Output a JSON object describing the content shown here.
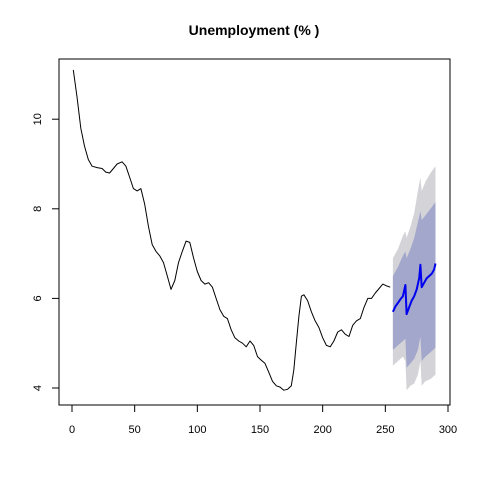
{
  "chart_data": {
    "type": "line",
    "title": "Unemployment (% )",
    "xlabel": "",
    "ylabel": "",
    "xlim": [
      0,
      300
    ],
    "ylim": [
      3.8,
      11.4
    ],
    "x_ticks": [
      0,
      50,
      100,
      150,
      200,
      250,
      300
    ],
    "x_tick_labels": [
      "0",
      "50",
      "100",
      "150",
      "200",
      "250",
      "300"
    ],
    "y_ticks": [
      4,
      6,
      8,
      10
    ],
    "y_tick_labels": [
      "4",
      "6",
      "8",
      "10"
    ],
    "grid": false,
    "legend": "none",
    "colors": {
      "history": "#000000",
      "forecast": "#0000ee",
      "band_80": "#a3a7cc",
      "band_95": "#d4d4d8"
    },
    "series": [
      {
        "role": "history",
        "points": [
          [
            1,
            11.1
          ],
          [
            4,
            10.5
          ],
          [
            7,
            9.8
          ],
          [
            10,
            9.4
          ],
          [
            13,
            9.1
          ],
          [
            16,
            8.95
          ],
          [
            20,
            8.92
          ],
          [
            24,
            8.9
          ],
          [
            27,
            8.82
          ],
          [
            30,
            8.8
          ],
          [
            33,
            8.9
          ],
          [
            36,
            9.0
          ],
          [
            40,
            9.05
          ],
          [
            43,
            8.95
          ],
          [
            46,
            8.7
          ],
          [
            49,
            8.45
          ],
          [
            52,
            8.4
          ],
          [
            55,
            8.45
          ],
          [
            58,
            8.1
          ],
          [
            61,
            7.6
          ],
          [
            64,
            7.2
          ],
          [
            67,
            7.05
          ],
          [
            70,
            6.95
          ],
          [
            73,
            6.8
          ],
          [
            76,
            6.5
          ],
          [
            79,
            6.2
          ],
          [
            82,
            6.4
          ],
          [
            85,
            6.8
          ],
          [
            88,
            7.05
          ],
          [
            91,
            7.28
          ],
          [
            94,
            7.25
          ],
          [
            97,
            6.9
          ],
          [
            100,
            6.6
          ],
          [
            103,
            6.4
          ],
          [
            106,
            6.32
          ],
          [
            109,
            6.35
          ],
          [
            112,
            6.25
          ],
          [
            115,
            6.0
          ],
          [
            118,
            5.75
          ],
          [
            121,
            5.6
          ],
          [
            124,
            5.55
          ],
          [
            127,
            5.3
          ],
          [
            130,
            5.12
          ],
          [
            133,
            5.05
          ],
          [
            136,
            5.0
          ],
          [
            139,
            4.92
          ],
          [
            142,
            5.05
          ],
          [
            145,
            4.95
          ],
          [
            148,
            4.7
          ],
          [
            151,
            4.62
          ],
          [
            154,
            4.55
          ],
          [
            157,
            4.35
          ],
          [
            160,
            4.15
          ],
          [
            163,
            4.05
          ],
          [
            166,
            4.02
          ],
          [
            169,
            3.95
          ],
          [
            172,
            3.97
          ],
          [
            175,
            4.05
          ],
          [
            177,
            4.4
          ],
          [
            179,
            5.0
          ],
          [
            181,
            5.6
          ],
          [
            183,
            6.05
          ],
          [
            185,
            6.08
          ],
          [
            188,
            5.95
          ],
          [
            191,
            5.7
          ],
          [
            194,
            5.5
          ],
          [
            197,
            5.35
          ],
          [
            200,
            5.12
          ],
          [
            203,
            4.95
          ],
          [
            206,
            4.92
          ],
          [
            209,
            5.05
          ],
          [
            212,
            5.25
          ],
          [
            215,
            5.3
          ],
          [
            218,
            5.2
          ],
          [
            221,
            5.15
          ],
          [
            224,
            5.4
          ],
          [
            227,
            5.5
          ],
          [
            230,
            5.55
          ],
          [
            233,
            5.8
          ],
          [
            236,
            6.0
          ],
          [
            239,
            6.0
          ],
          [
            242,
            6.12
          ],
          [
            245,
            6.22
          ],
          [
            248,
            6.32
          ],
          [
            251,
            6.28
          ],
          [
            254,
            6.25
          ]
        ]
      },
      {
        "role": "forecast",
        "points": [
          [
            256,
            5.7
          ],
          [
            258,
            5.82
          ],
          [
            260,
            5.9
          ],
          [
            262,
            5.98
          ],
          [
            264,
            6.05
          ],
          [
            266,
            6.3
          ],
          [
            267,
            5.65
          ],
          [
            269,
            5.8
          ],
          [
            271,
            5.95
          ],
          [
            273,
            6.05
          ],
          [
            275,
            6.2
          ],
          [
            277,
            6.45
          ],
          [
            278,
            6.75
          ],
          [
            279,
            6.25
          ],
          [
            281,
            6.35
          ],
          [
            283,
            6.45
          ],
          [
            285,
            6.5
          ],
          [
            287,
            6.55
          ],
          [
            289,
            6.65
          ],
          [
            290,
            6.78
          ]
        ]
      }
    ],
    "bands": [
      {
        "level": "95",
        "points": [
          [
            256,
            4.5,
            6.9
          ],
          [
            260,
            4.6,
            7.1
          ],
          [
            264,
            4.7,
            7.4
          ],
          [
            266,
            4.6,
            7.5
          ],
          [
            267,
            3.95,
            7.35
          ],
          [
            270,
            4.05,
            7.6
          ],
          [
            273,
            4.1,
            7.9
          ],
          [
            276,
            4.3,
            8.4
          ],
          [
            278,
            4.6,
            8.7
          ],
          [
            279,
            4.05,
            8.4
          ],
          [
            282,
            4.15,
            8.6
          ],
          [
            286,
            4.2,
            8.8
          ],
          [
            290,
            4.3,
            8.95
          ]
        ]
      },
      {
        "level": "80",
        "points": [
          [
            256,
            4.85,
            6.5
          ],
          [
            260,
            4.95,
            6.7
          ],
          [
            264,
            5.05,
            6.95
          ],
          [
            266,
            5.1,
            7.05
          ],
          [
            267,
            4.45,
            6.9
          ],
          [
            270,
            4.55,
            7.1
          ],
          [
            273,
            4.65,
            7.35
          ],
          [
            276,
            4.85,
            7.7
          ],
          [
            278,
            5.15,
            7.95
          ],
          [
            279,
            4.6,
            7.75
          ],
          [
            282,
            4.7,
            7.85
          ],
          [
            286,
            4.8,
            8.0
          ],
          [
            290,
            4.9,
            8.15
          ]
        ]
      }
    ]
  }
}
